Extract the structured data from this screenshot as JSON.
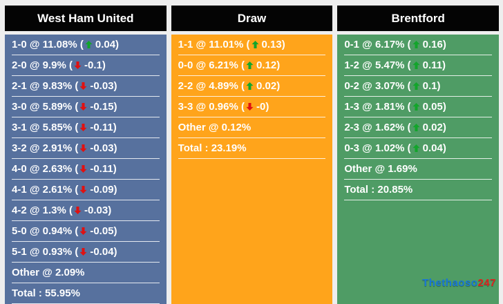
{
  "page": {
    "background": "#eeeeee"
  },
  "icons": {
    "up_arrow_color": "#12a52b",
    "down_arrow_color": "#e01111"
  },
  "watermark": {
    "text_blue": "Thethaoso",
    "text_red": "247",
    "color_blue": "#1878d8",
    "color_red": "#e0231f"
  },
  "chart_data": {
    "type": "table",
    "columns": [
      "West Ham United",
      "Draw",
      "Brentford"
    ],
    "groups": [
      {
        "id": "west-ham-united",
        "title": "West Ham United",
        "panel_color": "#57719e",
        "header_bg": "#040404",
        "rows": [
          {
            "score": "1-0",
            "probability_pct": 11.08,
            "label": "1-0 @ 11.08%",
            "change": 0.04,
            "change_display": "0.04",
            "direction": "up"
          },
          {
            "score": "2-0",
            "probability_pct": 9.9,
            "label": "2-0 @ 9.9%",
            "change": -0.1,
            "change_display": "-0.1",
            "direction": "down"
          },
          {
            "score": "2-1",
            "probability_pct": 9.83,
            "label": "2-1 @ 9.83%",
            "change": -0.03,
            "change_display": "-0.03",
            "direction": "down"
          },
          {
            "score": "3-0",
            "probability_pct": 5.89,
            "label": "3-0 @ 5.89%",
            "change": -0.15,
            "change_display": "-0.15",
            "direction": "down"
          },
          {
            "score": "3-1",
            "probability_pct": 5.85,
            "label": "3-1 @ 5.85%",
            "change": -0.11,
            "change_display": "-0.11",
            "direction": "down"
          },
          {
            "score": "3-2",
            "probability_pct": 2.91,
            "label": "3-2 @ 2.91%",
            "change": -0.03,
            "change_display": "-0.03",
            "direction": "down"
          },
          {
            "score": "4-0",
            "probability_pct": 2.63,
            "label": "4-0 @ 2.63%",
            "change": -0.11,
            "change_display": "-0.11",
            "direction": "down"
          },
          {
            "score": "4-1",
            "probability_pct": 2.61,
            "label": "4-1 @ 2.61%",
            "change": -0.09,
            "change_display": "-0.09",
            "direction": "down"
          },
          {
            "score": "4-2",
            "probability_pct": 1.3,
            "label": "4-2 @ 1.3%",
            "change": -0.03,
            "change_display": "-0.03",
            "direction": "down"
          },
          {
            "score": "5-0",
            "probability_pct": 0.94,
            "label": "5-0 @ 0.94%",
            "change": -0.05,
            "change_display": "-0.05",
            "direction": "down"
          },
          {
            "score": "5-1",
            "probability_pct": 0.93,
            "label": "5-1 @ 0.93%",
            "change": -0.04,
            "change_display": "-0.04",
            "direction": "down"
          },
          {
            "score": "Other",
            "probability_pct": 2.09,
            "label": "Other @ 2.09%"
          },
          {
            "score": "Total",
            "probability_pct": 55.95,
            "label": "Total : 55.95%"
          }
        ]
      },
      {
        "id": "draw",
        "title": "Draw",
        "panel_color": "#ffa41b",
        "header_bg": "#040404",
        "rows": [
          {
            "score": "1-1",
            "probability_pct": 11.01,
            "label": "1-1 @ 11.01%",
            "change": 0.13,
            "change_display": "0.13",
            "direction": "up"
          },
          {
            "score": "0-0",
            "probability_pct": 6.21,
            "label": "0-0 @ 6.21%",
            "change": 0.12,
            "change_display": "0.12",
            "direction": "up"
          },
          {
            "score": "2-2",
            "probability_pct": 4.89,
            "label": "2-2 @ 4.89%",
            "change": 0.02,
            "change_display": "0.02",
            "direction": "up"
          },
          {
            "score": "3-3",
            "probability_pct": 0.96,
            "label": "3-3 @ 0.96%",
            "change": 0,
            "change_display": "-0",
            "direction": "down"
          },
          {
            "score": "Other",
            "probability_pct": 0.12,
            "label": "Other @ 0.12%"
          },
          {
            "score": "Total",
            "probability_pct": 23.19,
            "label": "Total : 23.19%"
          }
        ]
      },
      {
        "id": "brentford",
        "title": "Brentford",
        "panel_color": "#4f9c65",
        "header_bg": "#040404",
        "rows": [
          {
            "score": "0-1",
            "probability_pct": 6.17,
            "label": "0-1 @ 6.17%",
            "change": 0.16,
            "change_display": "0.16",
            "direction": "up"
          },
          {
            "score": "1-2",
            "probability_pct": 5.47,
            "label": "1-2 @ 5.47%",
            "change": 0.11,
            "change_display": "0.11",
            "direction": "up"
          },
          {
            "score": "0-2",
            "probability_pct": 3.07,
            "label": "0-2 @ 3.07%",
            "change": 0.1,
            "change_display": "0.1",
            "direction": "up"
          },
          {
            "score": "1-3",
            "probability_pct": 1.81,
            "label": "1-3 @ 1.81%",
            "change": 0.05,
            "change_display": "0.05",
            "direction": "up"
          },
          {
            "score": "2-3",
            "probability_pct": 1.62,
            "label": "2-3 @ 1.62%",
            "change": 0.02,
            "change_display": "0.02",
            "direction": "up"
          },
          {
            "score": "0-3",
            "probability_pct": 1.02,
            "label": "0-3 @ 1.02%",
            "change": 0.04,
            "change_display": "0.04",
            "direction": "up"
          },
          {
            "score": "Other",
            "probability_pct": 1.69,
            "label": "Other @ 1.69%"
          },
          {
            "score": "Total",
            "probability_pct": 20.85,
            "label": "Total : 20.85%"
          }
        ]
      }
    ]
  }
}
